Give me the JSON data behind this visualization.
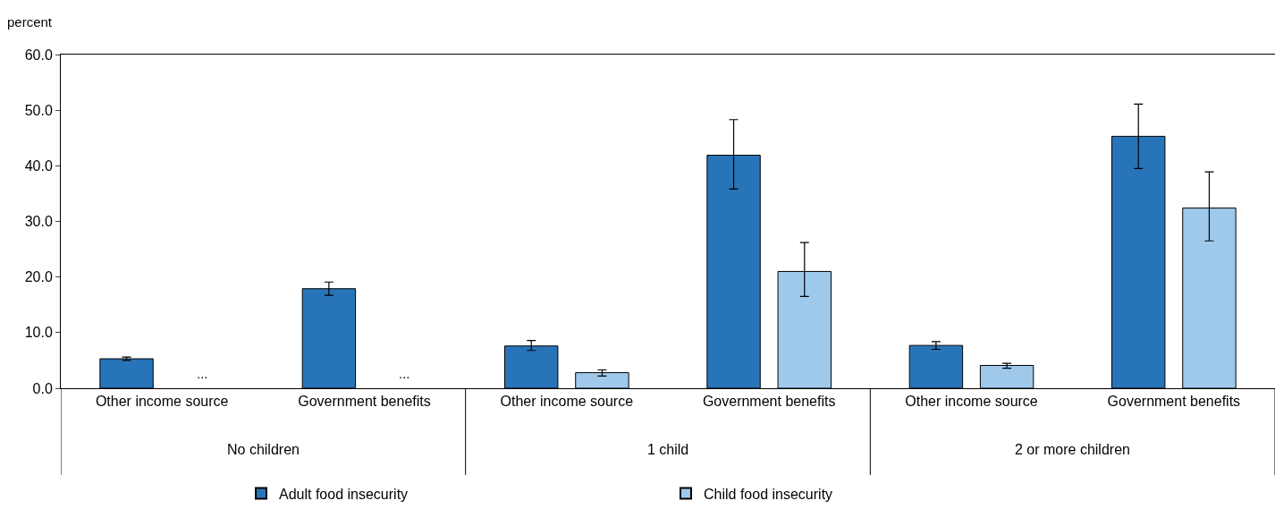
{
  "chart_data": {
    "type": "bar",
    "ylabel": "percent",
    "categories": [
      "Other income source",
      "Government benefits",
      "Other income source",
      "Government benefits",
      "Other income source",
      "Government benefits"
    ],
    "series": [
      {
        "name": "Adult food insecurity",
        "color": "#2874b8",
        "values": [
          5.3,
          17.9,
          7.6,
          41.9,
          7.7,
          45.3
        ],
        "errors": [
          [
            5.0,
            5.6
          ],
          [
            16.7,
            19.1
          ],
          [
            6.8,
            8.6
          ],
          [
            35.8,
            48.3
          ],
          [
            7.0,
            8.4
          ],
          [
            39.5,
            51.1
          ]
        ]
      },
      {
        "name": "Child food insecurity",
        "color": "#9fc9eb",
        "values": [
          null,
          null,
          2.8,
          21.0,
          4.1,
          32.4
        ],
        "errors": [
          null,
          null,
          [
            2.2,
            3.3
          ],
          [
            16.5,
            26.2
          ],
          [
            3.6,
            4.5
          ],
          [
            26.5,
            38.9
          ]
        ],
        "value_labels": [
          "...",
          "...",
          null,
          null,
          null,
          null
        ]
      }
    ],
    "annotations": [
      "No children",
      "1 child",
      "2 or more children"
    ],
    "ylim": [
      0,
      60
    ],
    "yticks": [
      {
        "value": 0,
        "label": "0.0"
      },
      {
        "value": 10,
        "label": "10.0"
      },
      {
        "value": 20,
        "label": "20.0"
      },
      {
        "value": 30,
        "label": "30.0"
      },
      {
        "value": 40,
        "label": "40.0"
      },
      {
        "value": 50,
        "label": "50.0"
      },
      {
        "value": 60,
        "label": "60.0"
      }
    ],
    "legend": "bottom"
  }
}
